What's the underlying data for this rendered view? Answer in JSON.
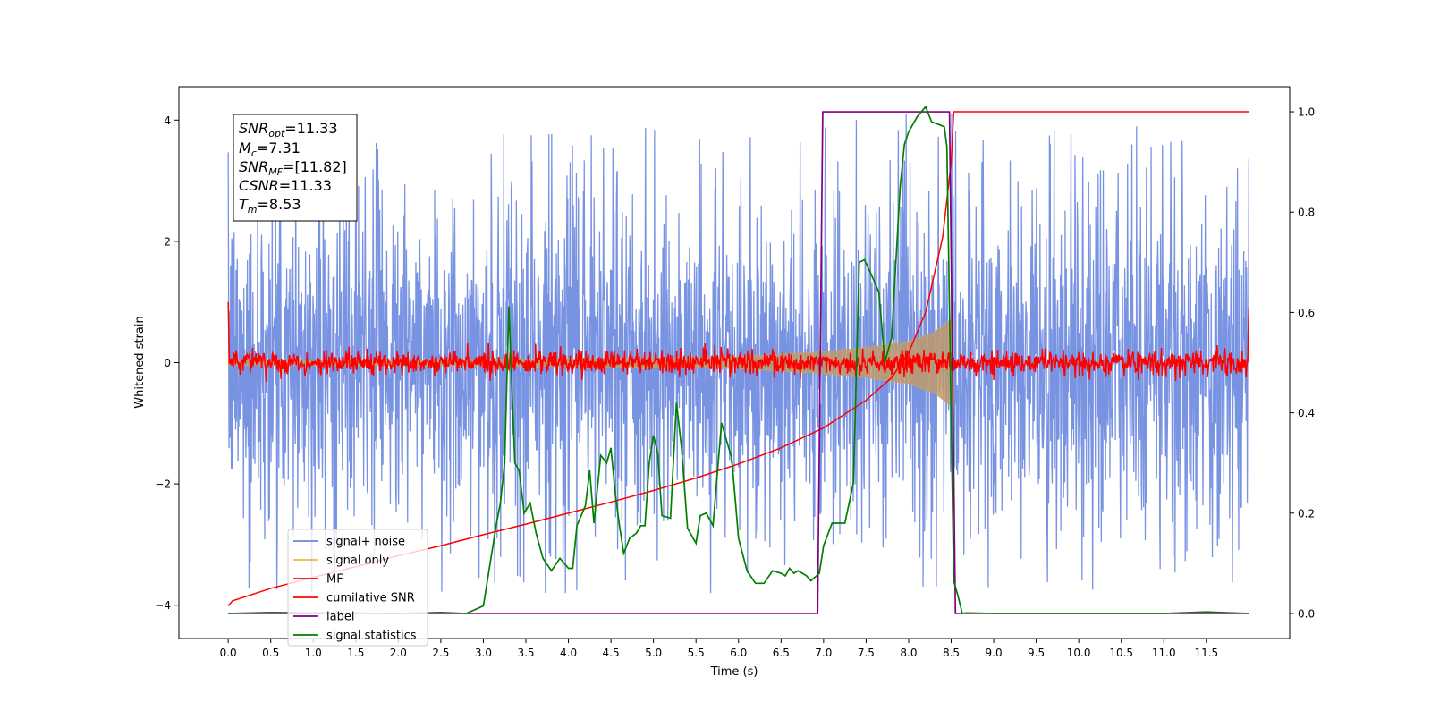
{
  "chart_data": {
    "type": "line",
    "xlabel": "Time (s)",
    "ylabel": "Whitened strain",
    "ylabel_right": "",
    "xlim": [
      -0.58,
      12.48
    ],
    "ylim": [
      -4.55,
      4.55
    ],
    "ylim_right": [
      -0.05,
      1.05
    ],
    "x_ticks": [
      "0.0",
      "0.5",
      "1.0",
      "1.5",
      "2.0",
      "2.5",
      "3.0",
      "3.5",
      "4.0",
      "4.5",
      "5.0",
      "5.5",
      "6.0",
      "6.5",
      "7.0",
      "7.5",
      "8.0",
      "8.5",
      "9.0",
      "9.5",
      "10.0",
      "10.5",
      "11.0",
      "11.5"
    ],
    "y_ticks_left": [
      "4",
      "2",
      "0",
      "−2",
      "−4"
    ],
    "y_ticks_right": [
      "1.0",
      "0.8",
      "0.6",
      "0.4",
      "0.2",
      "0.0"
    ],
    "grid": false,
    "legend_position": "lower-left",
    "legend": [
      {
        "label": "signal+ noise",
        "color": "#6a87e0"
      },
      {
        "label": "signal only",
        "color": "#f5b642"
      },
      {
        "label": "MF",
        "color": "#ff0000"
      },
      {
        "label": "cumilative SNR",
        "color": "#ff0000"
      },
      {
        "label": "label",
        "color": "#800080"
      },
      {
        "label": "signal statistics",
        "color": "#008000"
      }
    ],
    "annotation": {
      "snr_opt": {
        "name": "SNR",
        "sub": "opt",
        "value": "=11.33"
      },
      "mc": {
        "name": "M",
        "sub": "c",
        "value": "=7.31"
      },
      "snr_mf": {
        "name": "SNR",
        "sub": "MF",
        "value": "=[11.82]"
      },
      "csnr": {
        "name": "CSNR",
        "sub": "",
        "value": "=11.33"
      },
      "tm": {
        "name": "T",
        "sub": "m",
        "value": "=8.53"
      }
    },
    "series": [
      {
        "name": "signal+ noise",
        "axis": "left",
        "description_x_range": [
          0,
          12
        ],
        "typical_amplitude": 2.2,
        "min": -3.8,
        "max": 4.1
      },
      {
        "name": "signal only",
        "axis": "left",
        "envelope": {
          "x": [
            0,
            4.0,
            6.0,
            7.0,
            7.5,
            8.0,
            8.3,
            8.53
          ],
          "amp": [
            0.04,
            0.06,
            0.1,
            0.18,
            0.25,
            0.35,
            0.5,
            0.75
          ]
        }
      },
      {
        "name": "MF",
        "axis": "left",
        "typical_amplitude": 0.1,
        "x_range": [
          0,
          12
        ]
      },
      {
        "name": "cumilative SNR",
        "axis": "right",
        "x": [
          0.0,
          0.05,
          0.5,
          1.0,
          1.5,
          2.0,
          2.5,
          3.0,
          3.5,
          4.0,
          4.5,
          5.0,
          5.5,
          6.0,
          6.5,
          7.0,
          7.5,
          7.8,
          8.0,
          8.2,
          8.4,
          8.5,
          8.53,
          9.0,
          10.0,
          11.0,
          12.0
        ],
        "y": [
          0.015,
          0.025,
          0.05,
          0.072,
          0.093,
          0.115,
          0.135,
          0.157,
          0.178,
          0.2,
          0.222,
          0.245,
          0.27,
          0.298,
          0.33,
          0.37,
          0.425,
          0.47,
          0.52,
          0.6,
          0.75,
          0.9,
          1.0,
          1.0,
          1.0,
          1.0,
          1.0
        ]
      },
      {
        "name": "label",
        "axis": "right",
        "x": [
          0.0,
          6.93,
          6.99,
          8.48,
          8.55,
          12.0
        ],
        "y": [
          0.0,
          0.0,
          1.0,
          1.0,
          0.0,
          0.0
        ]
      },
      {
        "name": "signal statistics",
        "axis": "right",
        "x": [
          0.0,
          0.5,
          1.0,
          2.0,
          2.5,
          2.8,
          3.0,
          3.15,
          3.2,
          3.25,
          3.3,
          3.37,
          3.42,
          3.48,
          3.55,
          3.62,
          3.7,
          3.8,
          3.9,
          4.0,
          4.05,
          4.1,
          4.2,
          4.25,
          4.3,
          4.38,
          4.45,
          4.5,
          4.55,
          4.6,
          4.65,
          4.72,
          4.8,
          4.85,
          4.9,
          4.95,
          5.0,
          5.05,
          5.1,
          5.2,
          5.27,
          5.33,
          5.4,
          5.5,
          5.55,
          5.62,
          5.7,
          5.8,
          5.85,
          5.92,
          6.0,
          6.1,
          6.2,
          6.3,
          6.4,
          6.5,
          6.55,
          6.6,
          6.65,
          6.7,
          6.8,
          6.85,
          6.95,
          7.0,
          7.1,
          7.25,
          7.35,
          7.42,
          7.48,
          7.55,
          7.65,
          7.72,
          7.8,
          7.9,
          7.95,
          8.0,
          8.1,
          8.2,
          8.27,
          8.35,
          8.42,
          8.45,
          8.53,
          8.58,
          8.63,
          8.68,
          9.0,
          10.0,
          11.0,
          11.5,
          12.0
        ],
        "y": [
          0.0,
          0.002,
          0.001,
          0.0,
          0.002,
          0.0,
          0.015,
          0.175,
          0.22,
          0.3,
          0.612,
          0.3,
          0.285,
          0.2,
          0.22,
          0.16,
          0.11,
          0.085,
          0.11,
          0.09,
          0.09,
          0.175,
          0.215,
          0.285,
          0.18,
          0.315,
          0.3,
          0.33,
          0.24,
          0.175,
          0.12,
          0.15,
          0.16,
          0.175,
          0.175,
          0.3,
          0.355,
          0.32,
          0.195,
          0.19,
          0.42,
          0.33,
          0.17,
          0.14,
          0.195,
          0.2,
          0.175,
          0.38,
          0.35,
          0.31,
          0.15,
          0.085,
          0.06,
          0.06,
          0.085,
          0.08,
          0.075,
          0.09,
          0.08,
          0.085,
          0.075,
          0.065,
          0.08,
          0.135,
          0.18,
          0.18,
          0.26,
          0.7,
          0.705,
          0.68,
          0.64,
          0.5,
          0.55,
          0.85,
          0.935,
          0.96,
          0.99,
          1.01,
          0.98,
          0.975,
          0.97,
          0.93,
          0.065,
          0.035,
          0.0,
          0.001,
          0.0,
          0.0,
          0.0,
          0.003,
          0.0
        ]
      }
    ]
  }
}
